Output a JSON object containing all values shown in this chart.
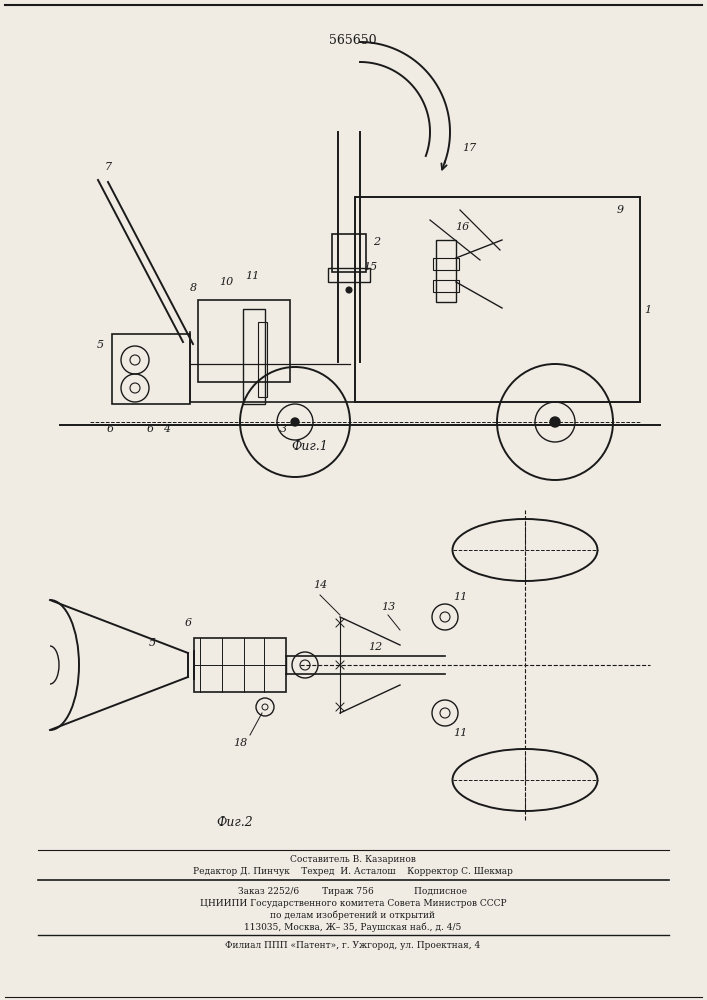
{
  "patent_number": "565650",
  "fig1_label": "Фиг.1",
  "fig2_label": "Фиг.2",
  "footer_lines": [
    "Составитель В. Казаринов",
    "Редактор Д. Пинчук    Техред  И. Асталош    Корректор С. Шекмар",
    "Заказ 2252/6        Тираж 756              Подписное",
    "ЦНИИПИ Государственного комитета Совета Министров СССР",
    "по делам изобретений и открытий",
    "113035, Москва, Ж– 35, Раушская наб., д. 4/5",
    "Филиал ППП «Патент», г. Ужгород, ул. Проектная, 4"
  ],
  "bg_color": "#f0ece4",
  "line_color": "#1a1a1a",
  "label_color": "#1a1a1a"
}
